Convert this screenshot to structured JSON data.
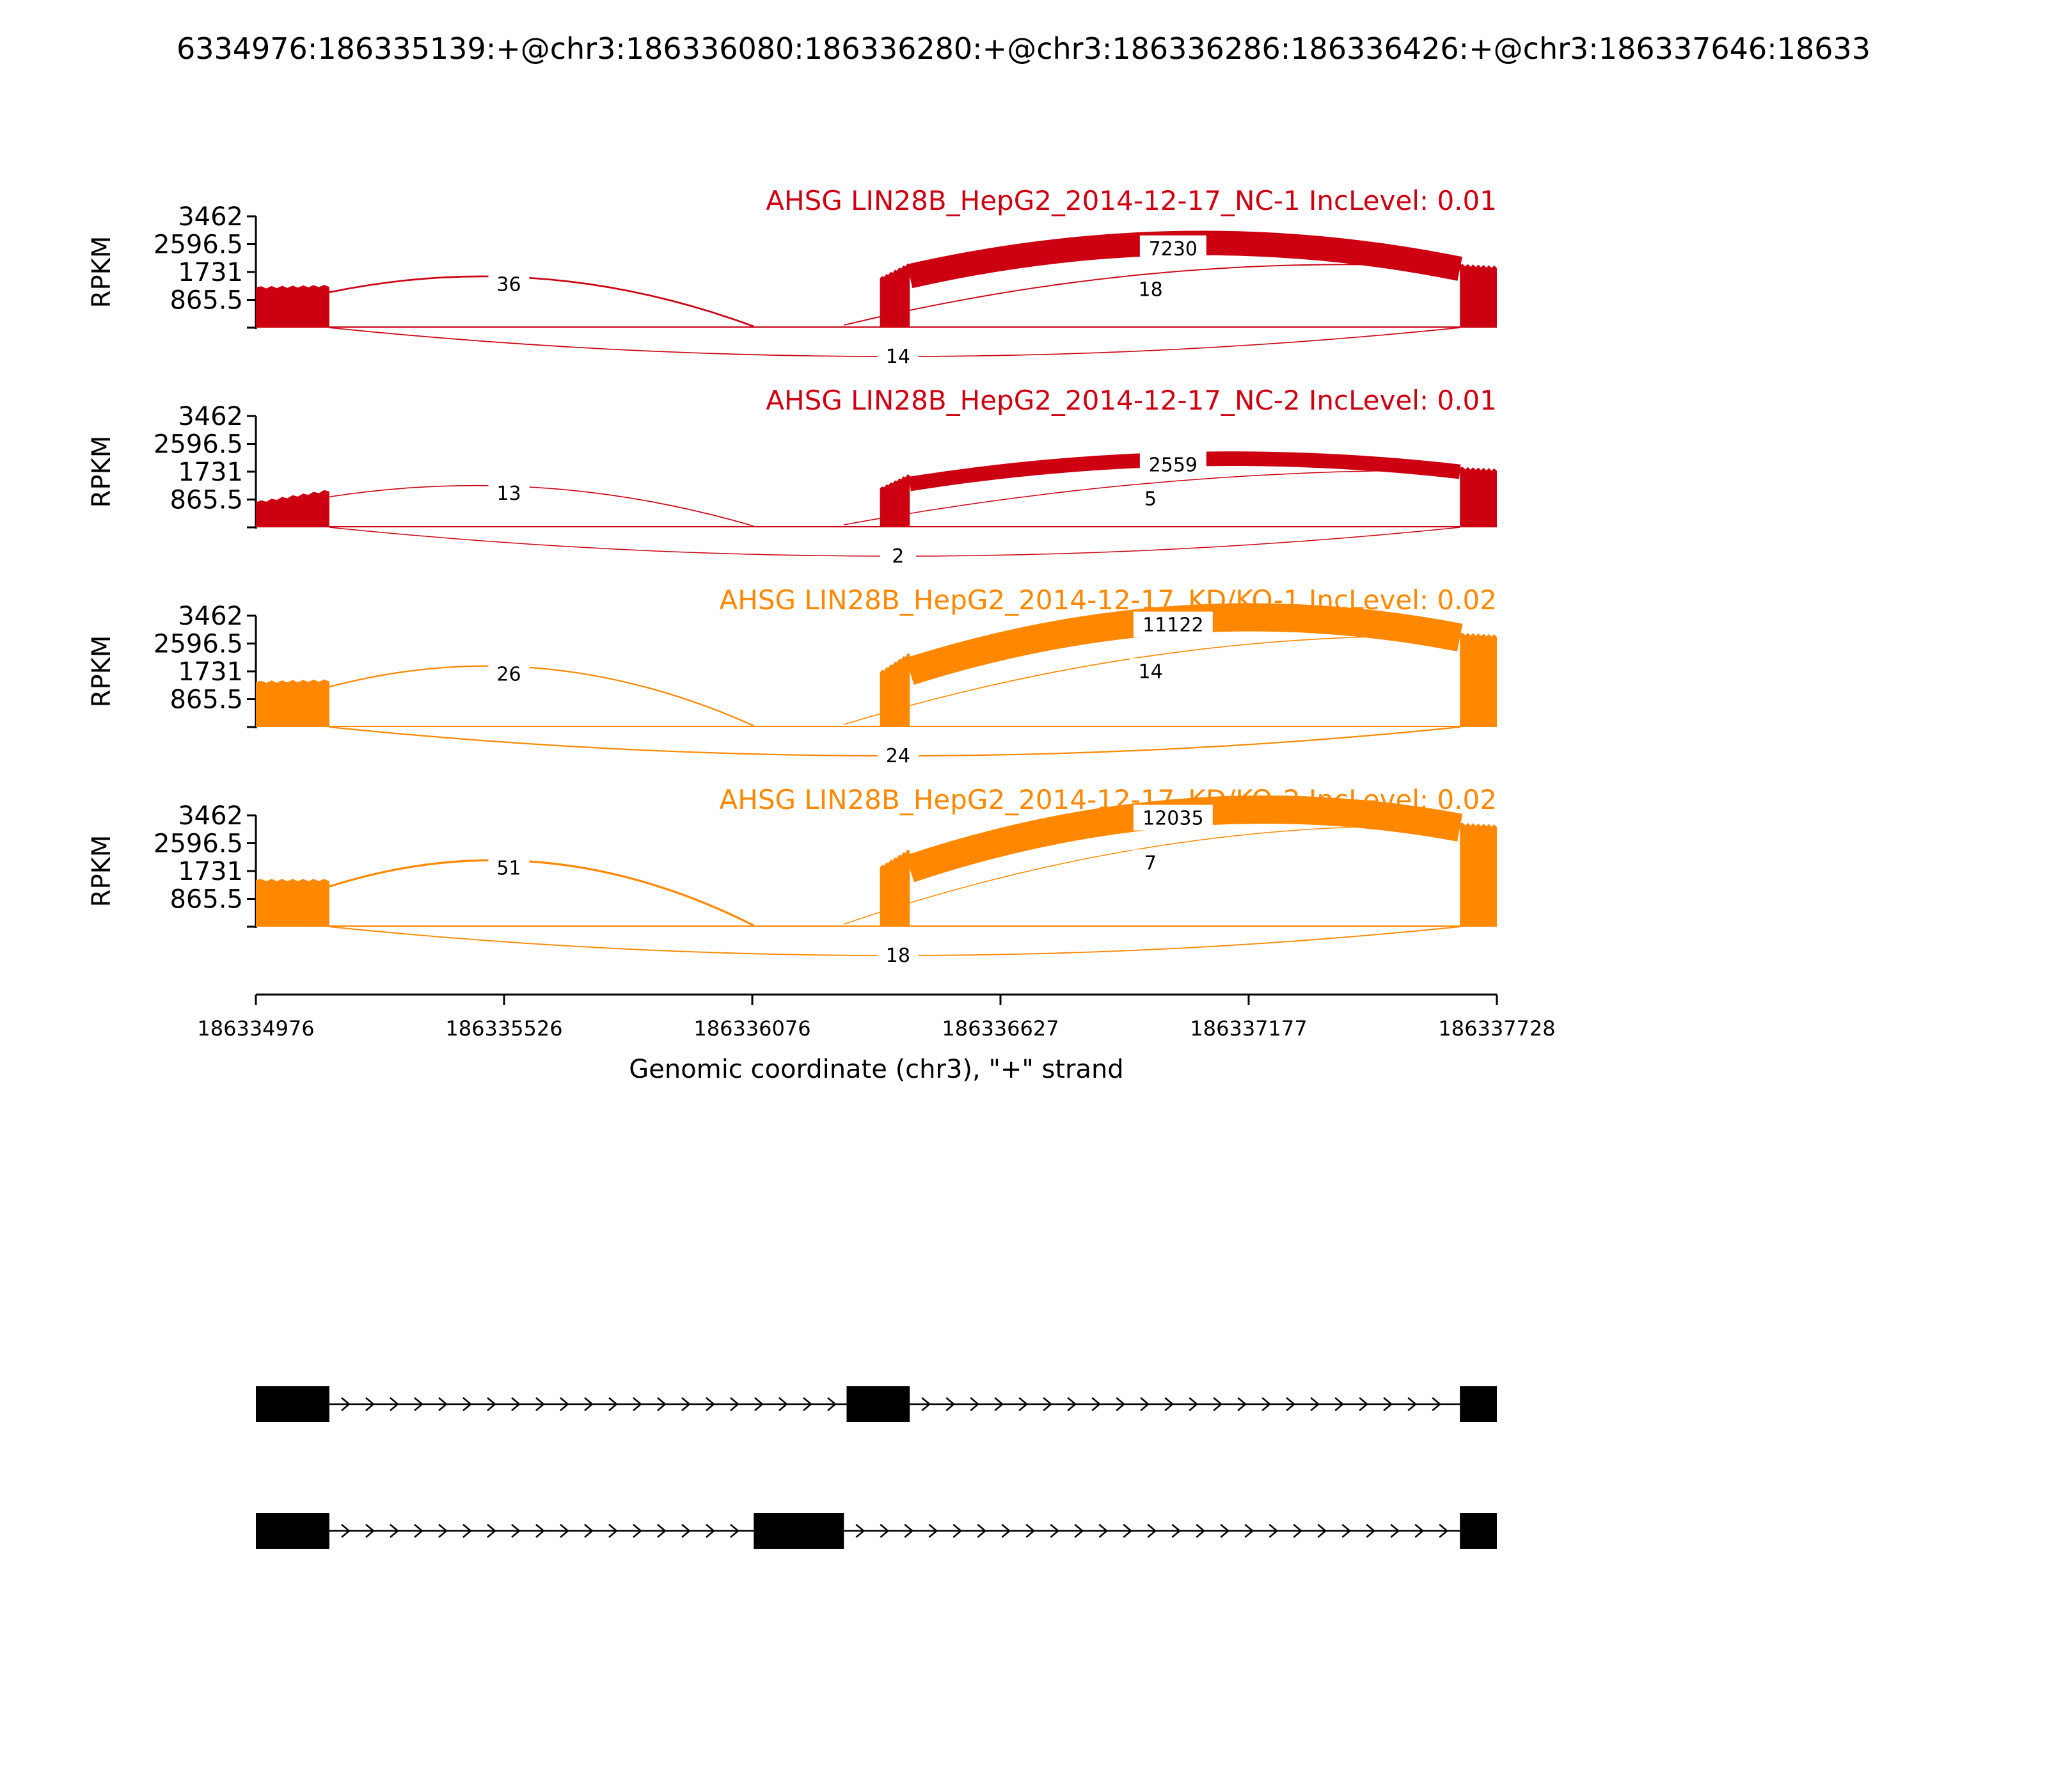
{
  "title": "6334976:186335139:+@chr3:186336080:186336280:+@chr3:186336286:186336426:+@chr3:186337646:18633",
  "chart_data": {
    "type": "area",
    "chart_kind": "sashimi",
    "xlim": [
      186334976,
      186337728
    ],
    "x_ticks": [
      "186334976",
      "186335526",
      "186336076",
      "186336627",
      "186337177",
      "186337728"
    ],
    "xlabel": "Genomic coordinate (chr3), \"+\" strand",
    "ylabel": "RPKM",
    "ylim": [
      0,
      3462
    ],
    "y_ticks": [
      "3462",
      "2596.5",
      "1731",
      "865.5"
    ],
    "exons": [
      {
        "start": 186334976,
        "end": 186335139
      },
      {
        "start": 186336080,
        "end": 186336280
      },
      {
        "start": 186336286,
        "end": 186336426
      },
      {
        "start": 186337646,
        "end": 186337728
      }
    ],
    "tracks": [
      {
        "title": "AHSG LIN28B_HepG2_2014-12-17_NC-1 IncLevel: 0.01",
        "color": "#cc0011",
        "coverage": [
          1250,
          1250,
          1300,
          1540,
          1600,
          2000,
          1950
        ],
        "junctions": [
          {
            "from": 186335139,
            "to": 186336080,
            "count": "36",
            "side": "top",
            "ypos": 1520
          },
          {
            "from": 186336426,
            "to": 186337646,
            "count": "7230",
            "side": "top",
            "ypos": 2630
          },
          {
            "from": 186336280,
            "to": 186337646,
            "count": "18",
            "side": "top",
            "ypos": 1680
          },
          {
            "from": 186335139,
            "to": 186337646,
            "count": "14",
            "side": "bottom",
            "ypos": 0
          }
        ]
      },
      {
        "title": "AHSG LIN28B_HepG2_2014-12-17_NC-2 IncLevel: 0.01",
        "color": "#cc0011",
        "coverage": [
          780,
          800,
          1150,
          1210,
          1350,
          1650,
          1850
        ],
        "junctions": [
          {
            "from": 186335139,
            "to": 186336080,
            "count": "13",
            "side": "top",
            "ypos": 1230
          },
          {
            "from": 186336426,
            "to": 186337646,
            "count": "2559",
            "side": "top",
            "ypos": 2120
          },
          {
            "from": 186336280,
            "to": 186337646,
            "count": "5",
            "side": "top",
            "ypos": 1380
          },
          {
            "from": 186335139,
            "to": 186337646,
            "count": "2",
            "side": "bottom",
            "ypos": 0
          }
        ]
      },
      {
        "title": "AHSG LIN28B_HepG2_2014-12-17_KD/KO-1 IncLevel: 0.02",
        "color": "#ff8800",
        "coverage": [
          1400,
          1400,
          1450,
          1700,
          1730,
          2300,
          2900
        ],
        "junctions": [
          {
            "from": 186335139,
            "to": 186336080,
            "count": "26",
            "side": "top",
            "ypos": 1820
          },
          {
            "from": 186336426,
            "to": 186337646,
            "count": "11122",
            "side": "top",
            "ypos": 3350
          },
          {
            "from": 186336280,
            "to": 186337646,
            "count": "14",
            "side": "top",
            "ypos": 2220
          },
          {
            "from": 186335139,
            "to": 186337646,
            "count": "24",
            "side": "bottom",
            "ypos": 0
          }
        ]
      },
      {
        "title": "AHSG LIN28B_HepG2_2014-12-17_KD/KO-2 IncLevel: 0.02",
        "color": "#ff8800",
        "coverage": [
          1450,
          1400,
          1450,
          1850,
          1800,
          2400,
          3200
        ],
        "junctions": [
          {
            "from": 186335139,
            "to": 186336080,
            "count": "51",
            "side": "top",
            "ypos": 2000
          },
          {
            "from": 186336426,
            "to": 186337646,
            "count": "12035",
            "side": "top",
            "ypos": 3550
          },
          {
            "from": 186336280,
            "to": 186337646,
            "count": "7",
            "side": "top",
            "ypos": 2480
          },
          {
            "from": 186335139,
            "to": 186337646,
            "count": "18",
            "side": "bottom",
            "ypos": 0
          }
        ]
      }
    ],
    "isoforms": [
      {
        "exons": [
          [
            186334976,
            186335139
          ],
          [
            186336286,
            186336426
          ],
          [
            186337646,
            186337728
          ]
        ]
      },
      {
        "exons": [
          [
            186334976,
            186335139
          ],
          [
            186336080,
            186336280
          ],
          [
            186337646,
            186337728
          ]
        ]
      }
    ]
  }
}
